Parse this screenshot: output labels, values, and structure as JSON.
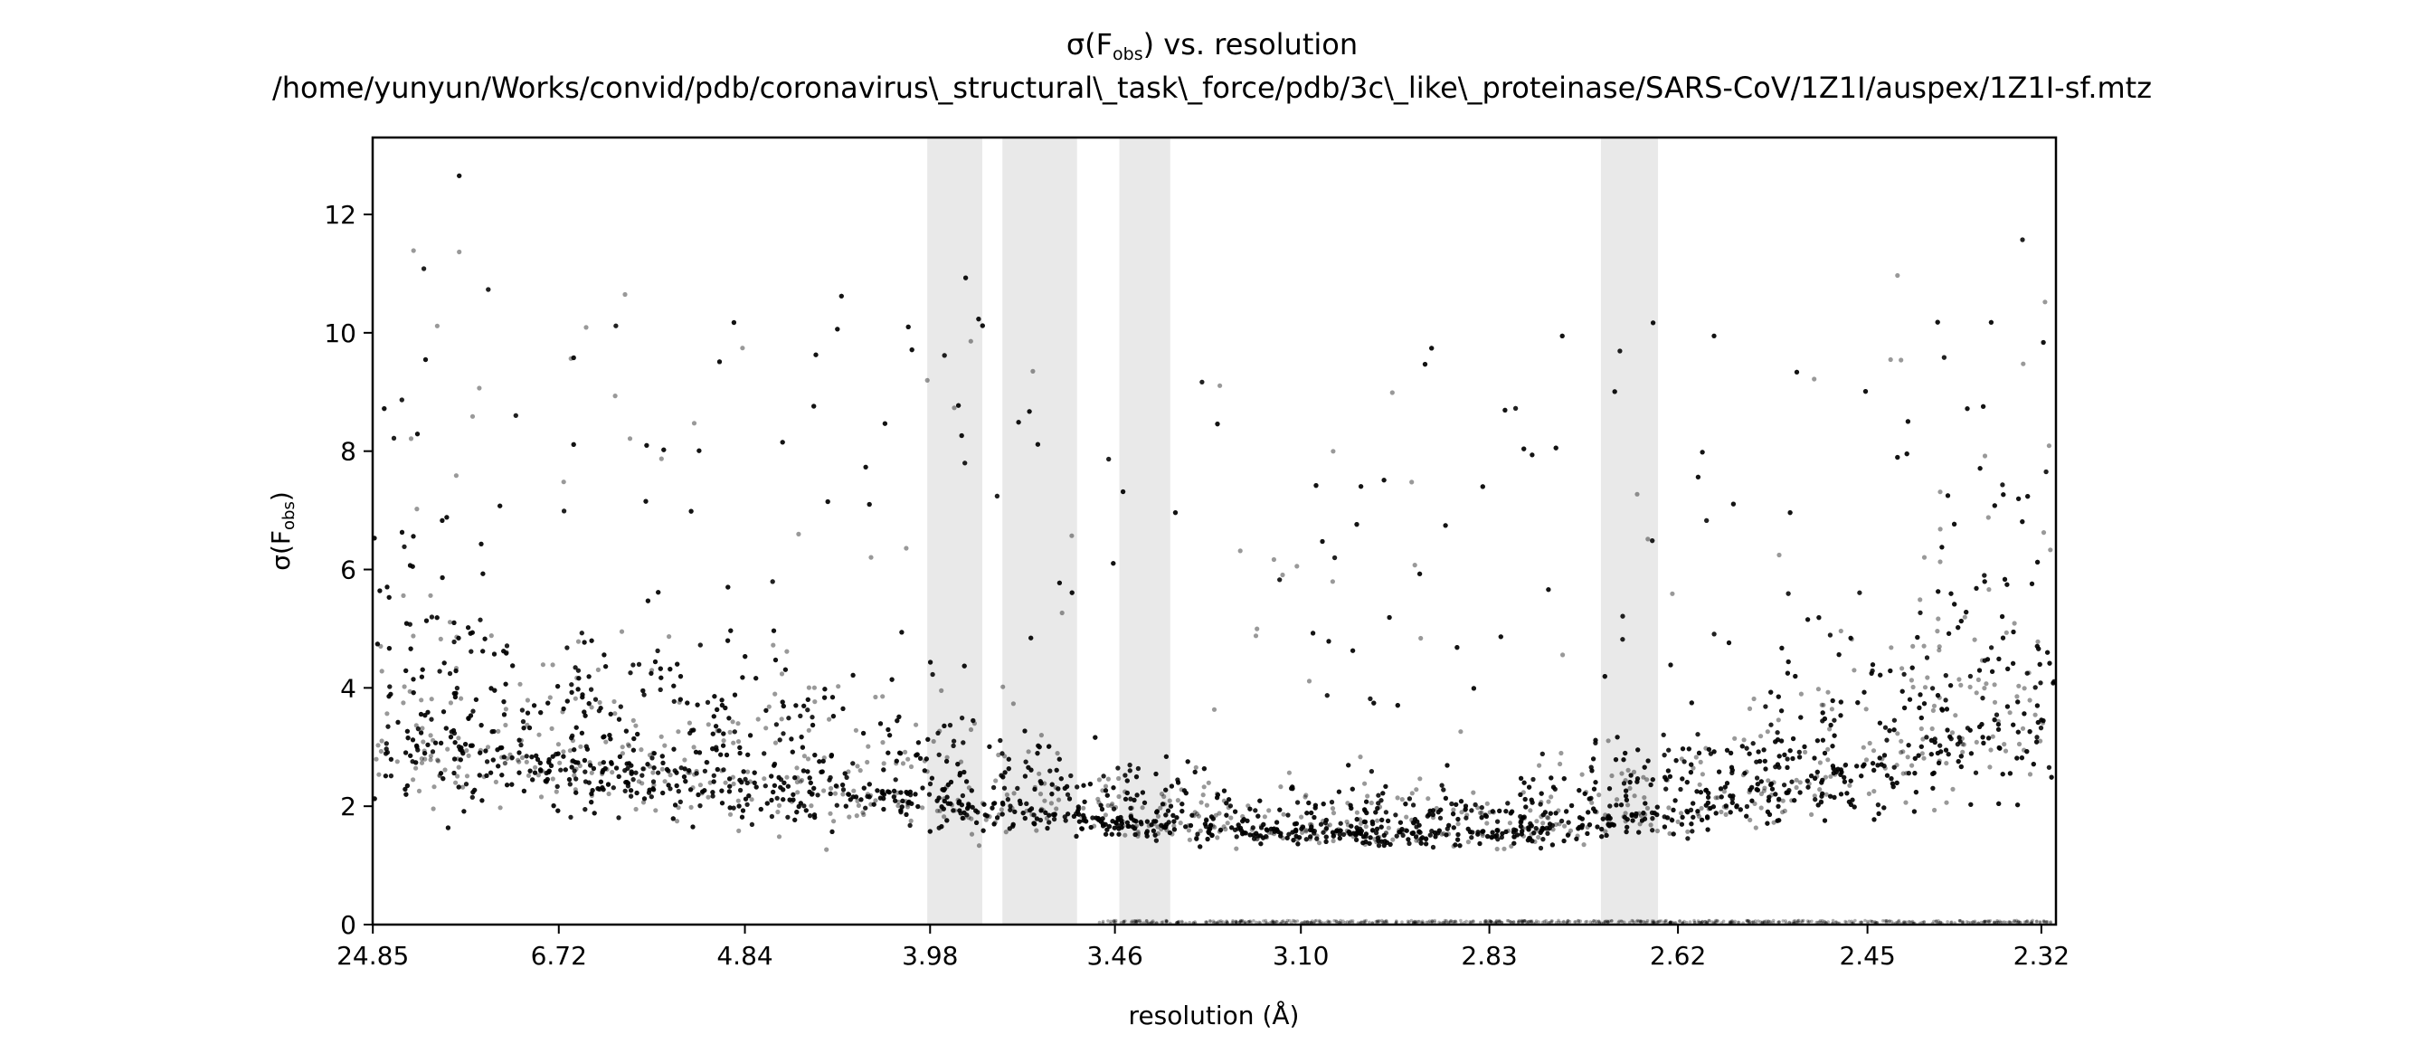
{
  "chart_data": {
    "type": "scatter",
    "title": {
      "line1_prefix": "σ(F",
      "line1_sub": "obs",
      "line1_suffix": ") vs. resolution",
      "line2": "/home/yunyun/Works/convid/pdb/coronavirus\\_structural\\_task\\_force/pdb/3c\\_like\\_proteinase/SARS-CoV/1Z1I/auspex/1Z1I-sf.mtz"
    },
    "xlabel": "resolution (Å)",
    "ylabel": {
      "prefix": "σ(F",
      "sub": "obs",
      "suffix": ")"
    },
    "x_scale": "1/d^2",
    "xlim_resolution": [
      25.0,
      2.31
    ],
    "ylim": [
      0,
      13.3
    ],
    "grid": false,
    "x_ticks": [
      24.85,
      6.72,
      4.84,
      3.98,
      3.46,
      3.1,
      2.83,
      2.62,
      2.45,
      2.32
    ],
    "x_tick_labels": [
      "24.85",
      "6.72",
      "4.84",
      "3.98",
      "3.46",
      "3.10",
      "2.83",
      "2.62",
      "2.45",
      "2.32"
    ],
    "y_ticks": [
      0,
      2,
      4,
      6,
      8,
      10,
      12
    ],
    "y_tick_labels": [
      "0",
      "2",
      "4",
      "6",
      "8",
      "10",
      "12"
    ],
    "ice_ring_bands": [
      {
        "from": 3.99,
        "to": 3.81
      },
      {
        "from": 3.75,
        "to": 3.55
      },
      {
        "from": 3.45,
        "to": 3.34
      },
      {
        "from": 2.7,
        "to": 2.64
      }
    ],
    "point_color": "#000000",
    "point_alpha": 0.4,
    "band_color": "#e9e9e9",
    "density_profile": [
      {
        "resolution": 24.85,
        "median_sigma": 3.4,
        "spread": 1.6
      },
      {
        "resolution": 6.72,
        "median_sigma": 2.8,
        "spread": 1.2
      },
      {
        "resolution": 4.84,
        "median_sigma": 2.6,
        "spread": 1.2
      },
      {
        "resolution": 3.98,
        "median_sigma": 2.2,
        "spread": 0.8
      },
      {
        "resolution": 3.46,
        "median_sigma": 1.8,
        "spread": 0.5
      },
      {
        "resolution": 3.1,
        "median_sigma": 1.6,
        "spread": 0.35
      },
      {
        "resolution": 2.83,
        "median_sigma": 1.6,
        "spread": 0.4
      },
      {
        "resolution": 2.62,
        "median_sigma": 2.0,
        "spread": 0.7
      },
      {
        "resolution": 2.45,
        "median_sigma": 2.8,
        "spread": 1.2
      },
      {
        "resolution": 2.32,
        "median_sigma": 3.8,
        "spread": 1.8
      }
    ]
  }
}
